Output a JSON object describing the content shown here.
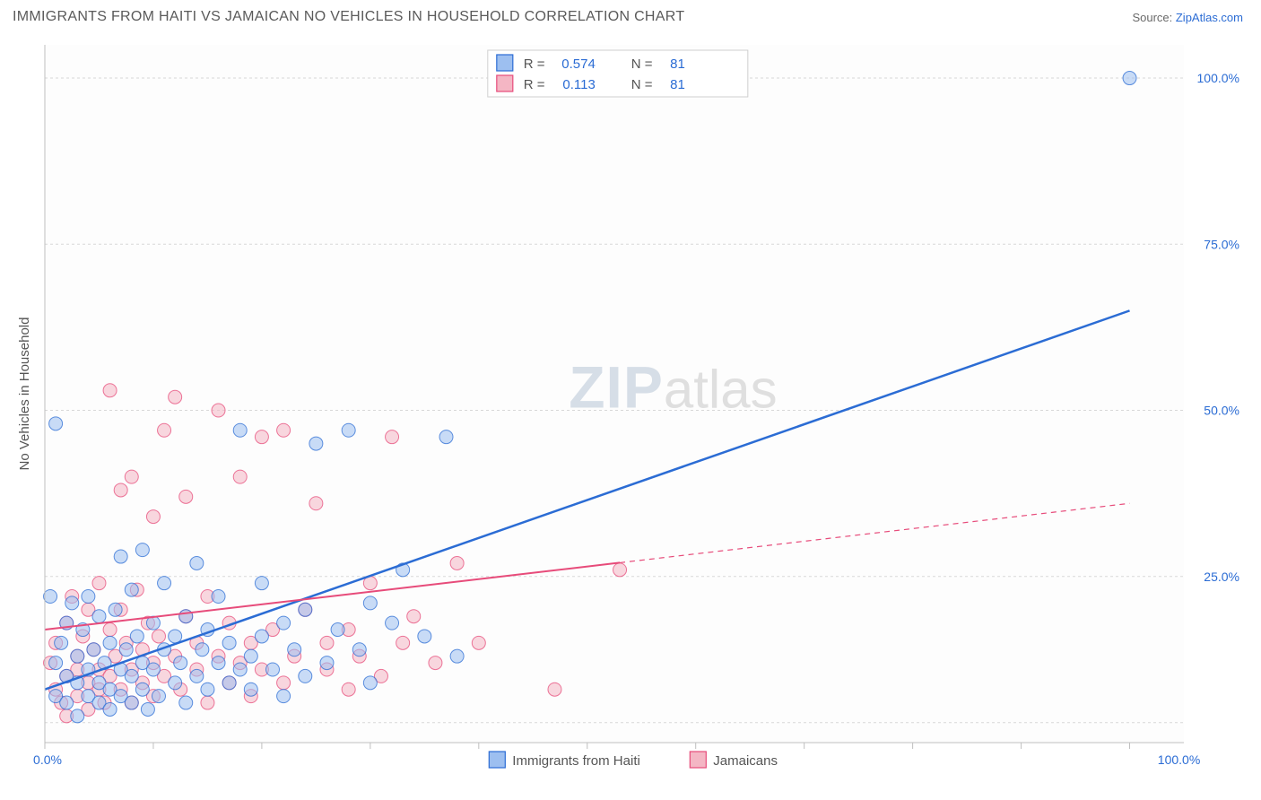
{
  "title": "IMMIGRANTS FROM HAITI VS JAMAICAN NO VEHICLES IN HOUSEHOLD CORRELATION CHART",
  "source_prefix": "Source: ",
  "source_link": "ZipAtlas.com",
  "y_axis_title": "No Vehicles in Household",
  "watermark_zip": "ZIP",
  "watermark_atlas": "atlas",
  "plot": {
    "x_min": 0,
    "x_max": 105,
    "y_min": 0,
    "y_max": 105,
    "x_ticks": [
      0,
      10,
      20,
      30,
      40,
      50,
      60,
      70,
      80,
      90,
      100
    ],
    "x_tick_labels_shown": {
      "0": "0.0%",
      "100": "100.0%"
    },
    "y_ticks": [
      25,
      50,
      75,
      100
    ],
    "y_tick_labels": {
      "25": "25.0%",
      "50": "50.0%",
      "75": "75.0%",
      "100": "100.0%"
    },
    "grid_y": [
      3,
      25,
      50,
      75,
      100
    ],
    "background": "#fdfdfd"
  },
  "series": [
    {
      "name": "Immigrants from Haiti",
      "color_fill": "#9dbff0",
      "color_stroke": "#2b6cd4",
      "marker_r": 7.5,
      "marker_opacity": 0.55,
      "line_color": "#2b6cd4",
      "line_width": 2.5,
      "trend": {
        "x1": 0,
        "y1": 8,
        "x2": 100,
        "y2": 65,
        "solid_until_x": 100
      },
      "R": "0.574",
      "N": "81",
      "points": [
        [
          0.5,
          22
        ],
        [
          1,
          48
        ],
        [
          1,
          12
        ],
        [
          1,
          7
        ],
        [
          1.5,
          15
        ],
        [
          2,
          18
        ],
        [
          2,
          10
        ],
        [
          2,
          6
        ],
        [
          2.5,
          21
        ],
        [
          3,
          13
        ],
        [
          3,
          9
        ],
        [
          3,
          4
        ],
        [
          3.5,
          17
        ],
        [
          4,
          11
        ],
        [
          4,
          7
        ],
        [
          4,
          22
        ],
        [
          4.5,
          14
        ],
        [
          5,
          9
        ],
        [
          5,
          6
        ],
        [
          5,
          19
        ],
        [
          5.5,
          12
        ],
        [
          6,
          15
        ],
        [
          6,
          8
        ],
        [
          6,
          5
        ],
        [
          6.5,
          20
        ],
        [
          7,
          11
        ],
        [
          7,
          7
        ],
        [
          7,
          28
        ],
        [
          7.5,
          14
        ],
        [
          8,
          10
        ],
        [
          8,
          6
        ],
        [
          8,
          23
        ],
        [
          8.5,
          16
        ],
        [
          9,
          12
        ],
        [
          9,
          29
        ],
        [
          9,
          8
        ],
        [
          9.5,
          5
        ],
        [
          10,
          18
        ],
        [
          10,
          11
        ],
        [
          10.5,
          7
        ],
        [
          11,
          14
        ],
        [
          11,
          24
        ],
        [
          12,
          9
        ],
        [
          12,
          16
        ],
        [
          12.5,
          12
        ],
        [
          13,
          6
        ],
        [
          13,
          19
        ],
        [
          14,
          10
        ],
        [
          14,
          27
        ],
        [
          14.5,
          14
        ],
        [
          15,
          8
        ],
        [
          15,
          17
        ],
        [
          16,
          12
        ],
        [
          16,
          22
        ],
        [
          17,
          9
        ],
        [
          17,
          15
        ],
        [
          18,
          11
        ],
        [
          18,
          47
        ],
        [
          19,
          13
        ],
        [
          19,
          8
        ],
        [
          20,
          24
        ],
        [
          20,
          16
        ],
        [
          21,
          11
        ],
        [
          22,
          18
        ],
        [
          22,
          7
        ],
        [
          23,
          14
        ],
        [
          24,
          20
        ],
        [
          24,
          10
        ],
        [
          25,
          45
        ],
        [
          26,
          12
        ],
        [
          27,
          17
        ],
        [
          28,
          47
        ],
        [
          29,
          14
        ],
        [
          30,
          21
        ],
        [
          30,
          9
        ],
        [
          32,
          18
        ],
        [
          33,
          26
        ],
        [
          35,
          16
        ],
        [
          37,
          46
        ],
        [
          38,
          13
        ],
        [
          100,
          100
        ]
      ]
    },
    {
      "name": "Jamaicans",
      "color_fill": "#f4b6c4",
      "color_stroke": "#e74b7a",
      "marker_r": 7.5,
      "marker_opacity": 0.55,
      "line_color": "#e74b7a",
      "line_width": 2,
      "trend": {
        "x1": 0,
        "y1": 17,
        "x2": 100,
        "y2": 36,
        "solid_until_x": 53
      },
      "R": "0.113",
      "N": "81",
      "points": [
        [
          0.5,
          12
        ],
        [
          1,
          8
        ],
        [
          1,
          15
        ],
        [
          1.5,
          6
        ],
        [
          2,
          18
        ],
        [
          2,
          10
        ],
        [
          2,
          4
        ],
        [
          2.5,
          22
        ],
        [
          3,
          13
        ],
        [
          3,
          7
        ],
        [
          3,
          11
        ],
        [
          3.5,
          16
        ],
        [
          4,
          9
        ],
        [
          4,
          5
        ],
        [
          4,
          20
        ],
        [
          4.5,
          14
        ],
        [
          5,
          8
        ],
        [
          5,
          24
        ],
        [
          5,
          11
        ],
        [
          5.5,
          6
        ],
        [
          6,
          53
        ],
        [
          6,
          17
        ],
        [
          6,
          10
        ],
        [
          6.5,
          13
        ],
        [
          7,
          38
        ],
        [
          7,
          8
        ],
        [
          7,
          20
        ],
        [
          7.5,
          15
        ],
        [
          8,
          11
        ],
        [
          8,
          6
        ],
        [
          8,
          40
        ],
        [
          8.5,
          23
        ],
        [
          9,
          14
        ],
        [
          9,
          9
        ],
        [
          9.5,
          18
        ],
        [
          10,
          12
        ],
        [
          10,
          7
        ],
        [
          10,
          34
        ],
        [
          10.5,
          16
        ],
        [
          11,
          10
        ],
        [
          11,
          47
        ],
        [
          12,
          13
        ],
        [
          12,
          52
        ],
        [
          12.5,
          8
        ],
        [
          13,
          19
        ],
        [
          13,
          37
        ],
        [
          14,
          11
        ],
        [
          14,
          15
        ],
        [
          15,
          6
        ],
        [
          15,
          22
        ],
        [
          16,
          13
        ],
        [
          16,
          50
        ],
        [
          17,
          9
        ],
        [
          17,
          18
        ],
        [
          18,
          40
        ],
        [
          18,
          12
        ],
        [
          19,
          15
        ],
        [
          19,
          7
        ],
        [
          20,
          46
        ],
        [
          20,
          11
        ],
        [
          21,
          17
        ],
        [
          22,
          9
        ],
        [
          22,
          47
        ],
        [
          23,
          13
        ],
        [
          24,
          20
        ],
        [
          25,
          36
        ],
        [
          26,
          11
        ],
        [
          26,
          15
        ],
        [
          28,
          17
        ],
        [
          28,
          8
        ],
        [
          29,
          13
        ],
        [
          30,
          24
        ],
        [
          31,
          10
        ],
        [
          32,
          46
        ],
        [
          33,
          15
        ],
        [
          34,
          19
        ],
        [
          36,
          12
        ],
        [
          38,
          27
        ],
        [
          40,
          15
        ],
        [
          47,
          8
        ],
        [
          53,
          26
        ]
      ]
    }
  ],
  "top_legend": {
    "R_label": "R =",
    "N_label": "N ="
  },
  "bottom_legend": {
    "items": [
      {
        "label": "Immigrants from Haiti",
        "fill": "#9dbff0",
        "stroke": "#2b6cd4"
      },
      {
        "label": "Jamaicans",
        "fill": "#f4b6c4",
        "stroke": "#e74b7a"
      }
    ]
  }
}
